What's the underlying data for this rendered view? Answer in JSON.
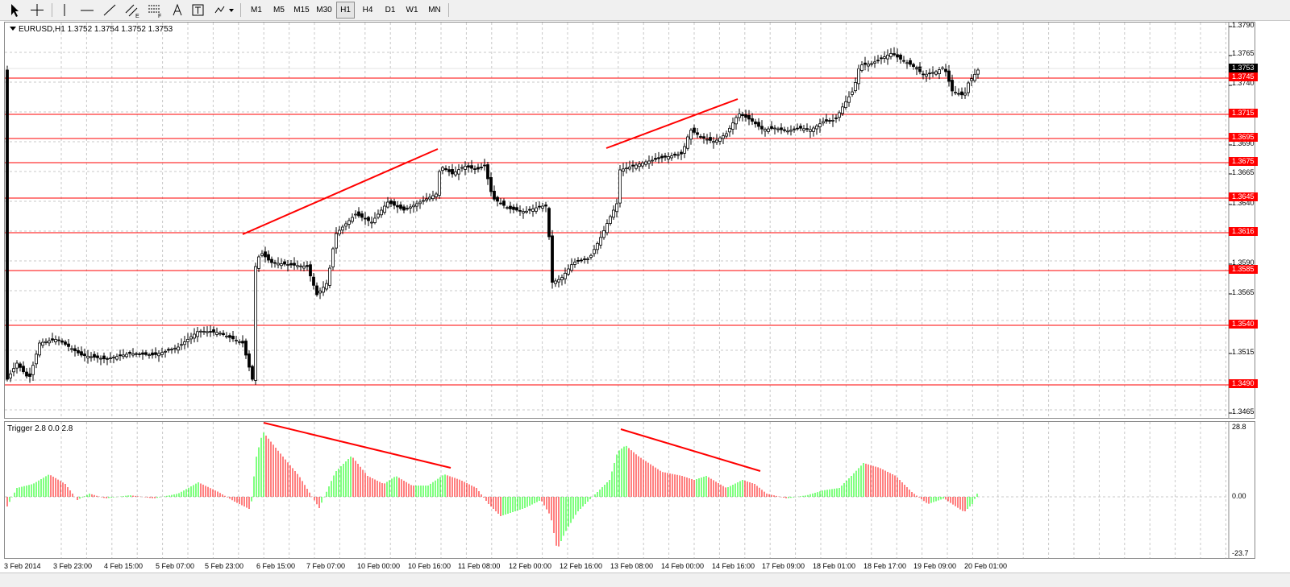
{
  "toolbar": {
    "tool_icons": [
      "cursor-arrow-icon",
      "crosshair-icon",
      "vertical-line-icon",
      "horizontal-line-icon",
      "trendline-icon",
      "equidistant-channel-icon",
      "fibonacci-retracement-icon",
      "text-icon",
      "text-label-icon",
      "arrows-icon"
    ],
    "timeframes": [
      "M1",
      "M5",
      "M15",
      "M30",
      "H1",
      "H4",
      "D1",
      "W1",
      "MN"
    ],
    "active_timeframe": "H1"
  },
  "chart": {
    "symbol_title": "EURUSD,H1  1.3752 1.3754 1.3752 1.3753",
    "current_price": "1.3753",
    "price_axis": [
      "1.3790",
      "1.3765",
      "1.3740",
      "1.3690",
      "1.3665",
      "1.3640",
      "1.3590",
      "1.3565",
      "1.3515",
      "1.3465"
    ],
    "levels": [
      "1.3745",
      "1.3715",
      "1.3695",
      "1.3675",
      "1.3645",
      "1.3616",
      "1.3585",
      "1.3540",
      "1.3490"
    ],
    "colors": {
      "bull": "#00a000",
      "bear": "#a00000",
      "body": "#000000",
      "level": "#ff0000",
      "grid": "#c8c8c8"
    }
  },
  "indicator": {
    "title": "Trigger 2.8 0.0 2.8",
    "axis": [
      "28.8",
      "0.00",
      "-23.7"
    ],
    "colors": {
      "up": "#00ff00",
      "down": "#ff0000"
    }
  },
  "time_axis": [
    "3 Feb 2014",
    "3 Feb 23:00",
    "4 Feb 15:00",
    "5 Feb 07:00",
    "5 Feb 23:00",
    "6 Feb 15:00",
    "7 Feb 07:00",
    "10 Feb 00:00",
    "10 Feb 16:00",
    "11 Feb 08:00",
    "12 Feb 00:00",
    "12 Feb 16:00",
    "13 Feb 08:00",
    "14 Feb 00:00",
    "14 Feb 16:00",
    "17 Feb 09:00",
    "18 Feb 01:00",
    "18 Feb 17:00",
    "19 Feb 09:00",
    "20 Feb 01:00"
  ]
}
